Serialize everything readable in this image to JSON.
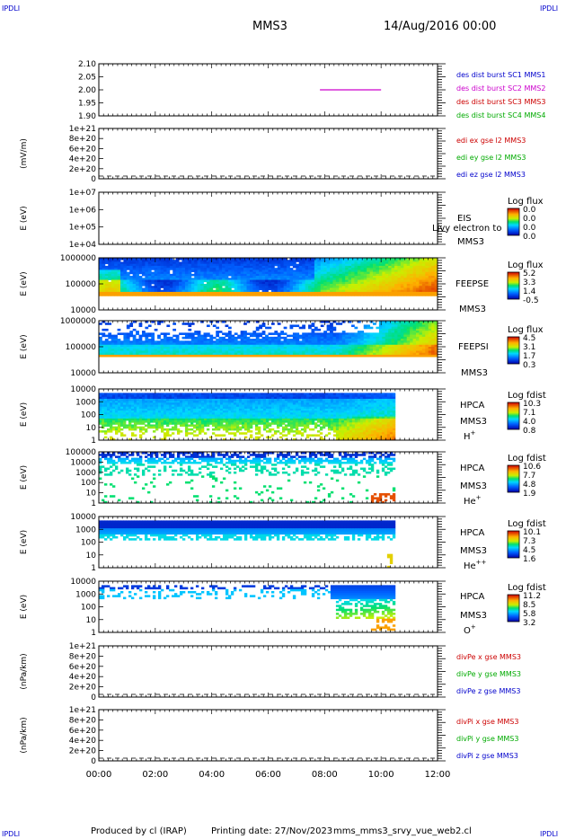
{
  "header": {
    "corner_label": "IPDLI",
    "spacecraft": "MMS3",
    "date": "14/Aug/2016 00:00"
  },
  "footer": {
    "produced_by": "Produced by cl (IRAP)",
    "printing_date": "Printing date: 27/Nov/2023",
    "script": "mms_mms3_srvy_vue_web2.cl"
  },
  "colors": {
    "blue": "#0000cc",
    "magenta": "#cc00cc",
    "red": "#cc0000",
    "green": "#00aa00"
  },
  "chart_data": [
    {
      "type": "line",
      "panel": "des-dist-burst",
      "ylim": [
        1.9,
        2.1
      ],
      "y_ticks": [
        "2.10",
        "2.05",
        "2.00",
        "1.95",
        "1.90"
      ],
      "legend": [
        "des dist burst SC1 MMS1",
        "des dist burst SC2 MMS2",
        "des dist burst SC3 MMS3",
        "des dist burst SC4 MMS4"
      ],
      "legend_colors": [
        "#0000cc",
        "#cc00cc",
        "#cc0000",
        "#00aa00"
      ],
      "series": [
        {
          "name": "des dist burst SC2 MMS2",
          "x": [
            "07:50",
            "10:00"
          ],
          "y": [
            2.0,
            2.0
          ]
        }
      ]
    },
    {
      "type": "line",
      "panel": "edi",
      "ylabel": "(mV/m)",
      "ylim": [
        0,
        1e+21
      ],
      "y_ticks": [
        "1e+21",
        "8e+20",
        "6e+20",
        "4e+20",
        "2e+20",
        "0"
      ],
      "legend": [
        "edi ex gse l2 MMS3",
        "edi ey gse l2 MMS3",
        "edi ez gse l2 MMS3"
      ],
      "legend_colors": [
        "#cc0000",
        "#00aa00",
        "#0000cc"
      ]
    },
    {
      "type": "heatmap",
      "panel": "eis",
      "ylabel": "E (eV)",
      "y_ticks": [
        "1e+07",
        "1e+06",
        "1e+05",
        "1e+04"
      ],
      "side_labels": [
        "EIS",
        "MMS3"
      ],
      "overlay_label": "Ljvy electron to",
      "colorbar_title": "Log flux",
      "colorbar_ticks": [
        "0.0",
        "0.0",
        "0.0",
        "0.0"
      ]
    },
    {
      "type": "heatmap",
      "panel": "feeps-e",
      "ylabel": "E (eV)",
      "y_ticks": [
        "1000000",
        "100000",
        "10000"
      ],
      "side_labels": [
        "FEEPSE",
        "MMS3"
      ],
      "colorbar_title": "Log flux",
      "colorbar_ticks": [
        "5.2",
        "3.3",
        "1.4",
        "-0.5"
      ]
    },
    {
      "type": "heatmap",
      "panel": "feeps-i",
      "ylabel": "E (eV)",
      "y_ticks": [
        "1000000",
        "100000",
        "10000"
      ],
      "side_labels": [
        "FEEPSI",
        "MMS3"
      ],
      "colorbar_title": "Log flux",
      "colorbar_ticks": [
        "4.5",
        "3.1",
        "1.7",
        "0.3"
      ]
    },
    {
      "type": "heatmap",
      "panel": "hpca-h",
      "ylabel": "E (eV)",
      "y_ticks": [
        "10000",
        "1000",
        "100",
        "10",
        "1"
      ],
      "side_labels": [
        "HPCA",
        "MMS3"
      ],
      "species_base": "H",
      "species_sup": "+",
      "colorbar_title": "Log fdist",
      "colorbar_ticks": [
        "10.3",
        "7.1",
        "4.0",
        "0.8"
      ]
    },
    {
      "type": "heatmap",
      "panel": "hpca-he1",
      "ylabel": "E (eV)",
      "y_ticks": [
        "100000",
        "10000",
        "1000",
        "100",
        "10",
        "1"
      ],
      "side_labels": [
        "HPCA",
        "MMS3"
      ],
      "species_base": "He",
      "species_sup": "+",
      "colorbar_title": "Log fdist",
      "colorbar_ticks": [
        "10.6",
        "7.7",
        "4.8",
        "1.9"
      ]
    },
    {
      "type": "heatmap",
      "panel": "hpca-he2",
      "ylabel": "E (eV)",
      "y_ticks": [
        "10000",
        "1000",
        "100",
        "10",
        "1"
      ],
      "side_labels": [
        "HPCA",
        "MMS3"
      ],
      "species_base": "He",
      "species_sup": "++",
      "colorbar_title": "Log fdist",
      "colorbar_ticks": [
        "10.1",
        "7.3",
        "4.5",
        "1.6"
      ]
    },
    {
      "type": "heatmap",
      "panel": "hpca-o",
      "ylabel": "E (eV)",
      "y_ticks": [
        "10000",
        "1000",
        "100",
        "10",
        "1"
      ],
      "side_labels": [
        "HPCA",
        "MMS3"
      ],
      "species_base": "O",
      "species_sup": "+",
      "colorbar_title": "Log fdist",
      "colorbar_ticks": [
        "11.2",
        "8.5",
        "5.8",
        "3.2"
      ]
    },
    {
      "type": "line",
      "panel": "divpe",
      "ylabel": "(nPa/km)",
      "ylim": [
        0,
        1e+21
      ],
      "y_ticks": [
        "1e+21",
        "8e+20",
        "6e+20",
        "4e+20",
        "2e+20",
        "0"
      ],
      "legend": [
        "divPe x gse MMS3",
        "divPe y gse MMS3",
        "divPe z gse MMS3"
      ],
      "legend_colors": [
        "#cc0000",
        "#00aa00",
        "#0000cc"
      ]
    },
    {
      "type": "line",
      "panel": "divpi",
      "ylabel": "(nPa/km)",
      "ylim": [
        0,
        1e+21
      ],
      "y_ticks": [
        "1e+21",
        "8e+20",
        "6e+20",
        "4e+20",
        "2e+20",
        "0"
      ],
      "legend": [
        "divPi x gse MMS3",
        "divPi y gse MMS3",
        "divPi z gse MMS3"
      ],
      "legend_colors": [
        "#cc0000",
        "#00aa00",
        "#0000cc"
      ]
    }
  ],
  "x_axis": {
    "ticks": [
      "00:00",
      "02:00",
      "04:00",
      "06:00",
      "08:00",
      "10:00",
      "12:00"
    ],
    "range_hours": [
      0,
      12
    ]
  }
}
